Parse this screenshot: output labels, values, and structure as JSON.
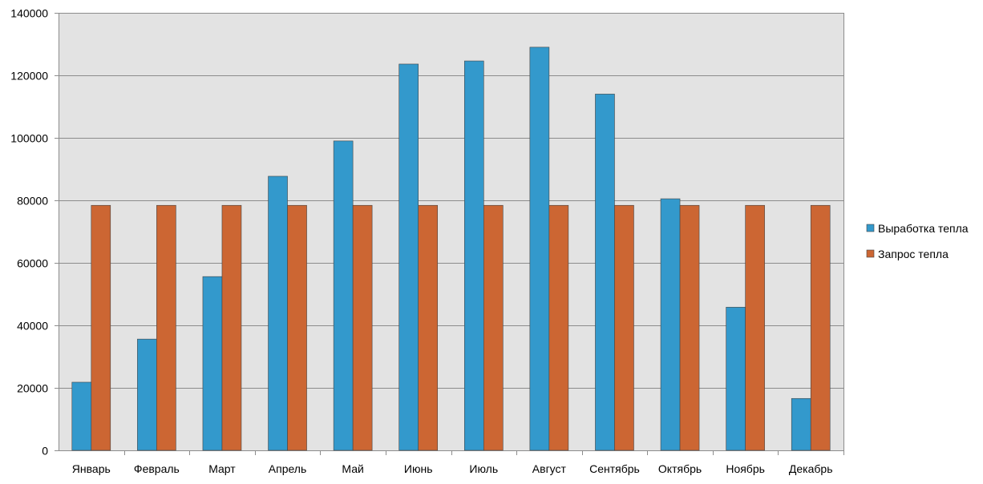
{
  "chart_data": {
    "type": "bar",
    "categories": [
      "Январь",
      "Февраль",
      "Март",
      "Апрель",
      "Май",
      "Июнь",
      "Июль",
      "Август",
      "Сентябрь",
      "Октябрь",
      "Ноябрь",
      "Декабрь"
    ],
    "series": [
      {
        "name": "Выработка тепла",
        "color": "#3399cc",
        "values": [
          21800,
          35600,
          55600,
          87700,
          99000,
          123600,
          124600,
          129000,
          114000,
          80500,
          45800,
          16600
        ]
      },
      {
        "name": "Запрос тепла",
        "color": "#cc6633",
        "values": [
          78400,
          78400,
          78400,
          78400,
          78400,
          78400,
          78400,
          78400,
          78400,
          78400,
          78400,
          78400
        ]
      }
    ],
    "ylim": [
      0,
      140000
    ],
    "yticks": [
      0,
      20000,
      40000,
      60000,
      80000,
      100000,
      120000,
      140000
    ],
    "grid": true,
    "legend_position": "right",
    "plot_background": "#e3e3e3",
    "title": "",
    "xlabel": "",
    "ylabel": ""
  }
}
